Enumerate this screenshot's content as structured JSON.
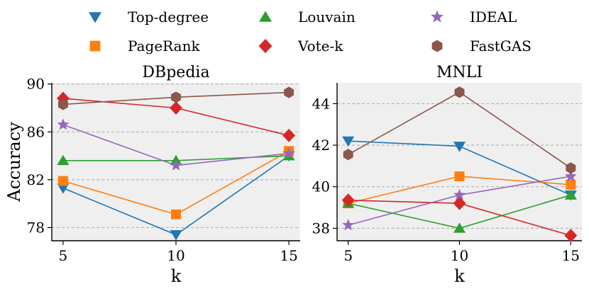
{
  "chart_data": [
    {
      "type": "line",
      "title": "DBpedia",
      "xlabel": "k",
      "ylabel": "Accuracy",
      "x": [
        5,
        10,
        15
      ],
      "xticks": [
        "5",
        "10",
        "15"
      ],
      "yticks": [
        78,
        82,
        86,
        90
      ],
      "ytick_labels": [
        "78",
        "82",
        "86",
        "90"
      ],
      "ylim": [
        76.9,
        90.1
      ],
      "xlim": [
        4.5,
        15.5
      ],
      "grid": "horizontal dashed",
      "series": [
        {
          "name": "Top-degree",
          "values": [
            81.3,
            77.4,
            84.0
          ]
        },
        {
          "name": "PageRank",
          "values": [
            81.9,
            79.1,
            84.4
          ]
        },
        {
          "name": "Louvain",
          "values": [
            83.6,
            83.6,
            84.0
          ]
        },
        {
          "name": "Vote-k",
          "values": [
            88.8,
            88.0,
            85.7
          ]
        },
        {
          "name": "IDEAL",
          "values": [
            86.6,
            83.2,
            84.2
          ]
        },
        {
          "name": "FastGAS",
          "values": [
            88.3,
            88.9,
            89.3
          ]
        }
      ]
    },
    {
      "type": "line",
      "title": "MNLI",
      "xlabel": "k",
      "ylabel": "",
      "x": [
        5,
        10,
        15
      ],
      "xticks": [
        "5",
        "10",
        "15"
      ],
      "yticks": [
        38,
        40,
        42,
        44
      ],
      "ytick_labels": [
        "38",
        "40",
        "42",
        "44"
      ],
      "ylim": [
        37.4,
        45.0
      ],
      "xlim": [
        4.5,
        15.5
      ],
      "grid": "horizontal dashed",
      "series": [
        {
          "name": "Top-degree",
          "values": [
            42.2,
            41.95,
            39.6
          ]
        },
        {
          "name": "PageRank",
          "values": [
            39.2,
            40.5,
            40.1
          ]
        },
        {
          "name": "Louvain",
          "values": [
            39.2,
            38.0,
            39.6
          ]
        },
        {
          "name": "Vote-k",
          "values": [
            39.35,
            39.2,
            37.65
          ]
        },
        {
          "name": "IDEAL",
          "values": [
            38.15,
            39.6,
            40.5
          ]
        },
        {
          "name": "FastGAS",
          "values": [
            41.55,
            44.55,
            40.9
          ]
        }
      ]
    }
  ],
  "legend": {
    "placement": "top",
    "entries": [
      {
        "name": "Top-degree",
        "marker": "triangle-down",
        "color": "#1f77b4"
      },
      {
        "name": "Louvain",
        "marker": "triangle-up",
        "color": "#2ca02c"
      },
      {
        "name": "IDEAL",
        "marker": "star",
        "color": "#9467bd"
      },
      {
        "name": "PageRank",
        "marker": "square",
        "color": "#ff7f0e"
      },
      {
        "name": "Vote-k",
        "marker": "diamond",
        "color": "#d62728"
      },
      {
        "name": "FastGAS",
        "marker": "hexagon",
        "color": "#8c564b"
      }
    ]
  }
}
